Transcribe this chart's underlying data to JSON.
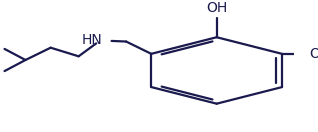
{
  "bg_color": "#ffffff",
  "line_color": "#1a1a4e",
  "line_width": 1.6,
  "font_size": 9.5,
  "font_color": "#1a1a4e",
  "figsize": [
    3.18,
    1.32
  ],
  "dpi": 100,
  "xlim": [
    -0.05,
    1.0
  ],
  "ylim": [
    0.0,
    1.0
  ]
}
